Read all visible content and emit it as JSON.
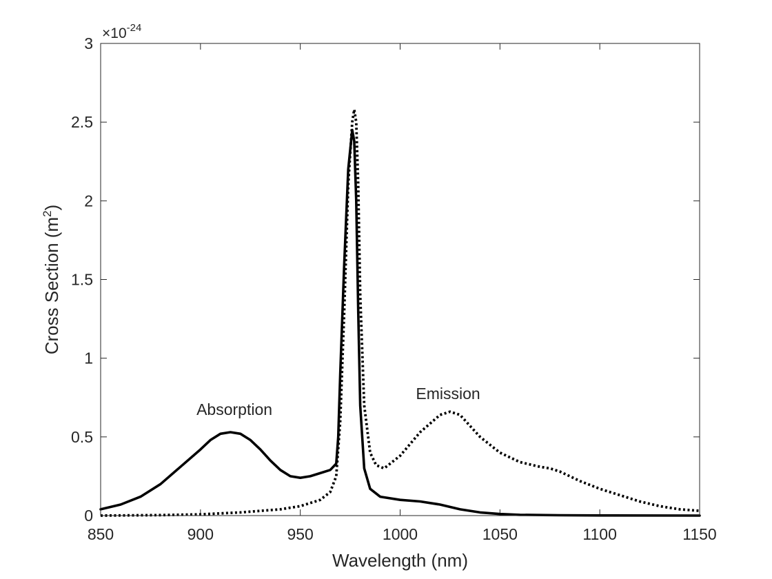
{
  "chart_data": {
    "type": "line",
    "title": "",
    "xlabel": "Wavelength (nm)",
    "ylabel_main": "Cross Section (m",
    "ylabel_sup": "2",
    "ylabel_tail": ")",
    "exponent_prefix": "×10",
    "exponent_power": "-24",
    "xlim": [
      850,
      1150
    ],
    "ylim": [
      0,
      3
    ],
    "xticks": [
      850,
      900,
      950,
      1000,
      1050,
      1100,
      1150
    ],
    "yticks": [
      0,
      0.5,
      1,
      1.5,
      2,
      2.5,
      3
    ],
    "xtick_labels": [
      "850",
      "900",
      "950",
      "1000",
      "1050",
      "1100",
      "1150"
    ],
    "ytick_labels": [
      "0",
      "0.5",
      "1",
      "1.5",
      "2",
      "2.5",
      "3"
    ],
    "grid": false,
    "annotations": [
      {
        "text": "Absorption",
        "x": 917,
        "y": 0.64
      },
      {
        "text": "Emission",
        "x": 1024,
        "y": 0.74
      }
    ],
    "series": [
      {
        "style": "solid",
        "color": "#000000",
        "x": [
          850,
          860,
          870,
          880,
          890,
          900,
          905,
          910,
          915,
          920,
          925,
          930,
          935,
          940,
          945,
          950,
          955,
          960,
          965,
          968,
          969,
          970,
          972,
          974,
          976,
          977,
          978,
          979,
          980,
          982,
          985,
          990,
          1000,
          1010,
          1020,
          1030,
          1040,
          1050,
          1060,
          1080,
          1100,
          1150
        ],
        "y": [
          0.04,
          0.07,
          0.12,
          0.2,
          0.31,
          0.42,
          0.48,
          0.52,
          0.53,
          0.52,
          0.48,
          0.42,
          0.35,
          0.29,
          0.25,
          0.24,
          0.25,
          0.27,
          0.29,
          0.33,
          0.5,
          0.9,
          1.6,
          2.2,
          2.45,
          2.38,
          2.0,
          1.3,
          0.7,
          0.3,
          0.17,
          0.12,
          0.1,
          0.09,
          0.07,
          0.04,
          0.02,
          0.01,
          0.005,
          0.002,
          0.001,
          0.0
        ]
      },
      {
        "style": "dotted",
        "color": "#000000",
        "x": [
          850,
          880,
          900,
          920,
          940,
          950,
          960,
          965,
          968,
          970,
          972,
          974,
          976,
          977,
          978,
          979,
          980,
          982,
          985,
          988,
          992,
          1000,
          1010,
          1020,
          1025,
          1030,
          1040,
          1050,
          1060,
          1070,
          1075,
          1080,
          1090,
          1100,
          1110,
          1120,
          1130,
          1140,
          1150
        ],
        "y": [
          0.0,
          0.003,
          0.008,
          0.02,
          0.04,
          0.06,
          0.1,
          0.15,
          0.25,
          0.6,
          1.3,
          2.1,
          2.5,
          2.58,
          2.5,
          2.1,
          1.4,
          0.7,
          0.4,
          0.32,
          0.3,
          0.38,
          0.53,
          0.64,
          0.66,
          0.64,
          0.5,
          0.4,
          0.34,
          0.31,
          0.3,
          0.28,
          0.22,
          0.17,
          0.13,
          0.09,
          0.06,
          0.04,
          0.03
        ]
      }
    ]
  }
}
